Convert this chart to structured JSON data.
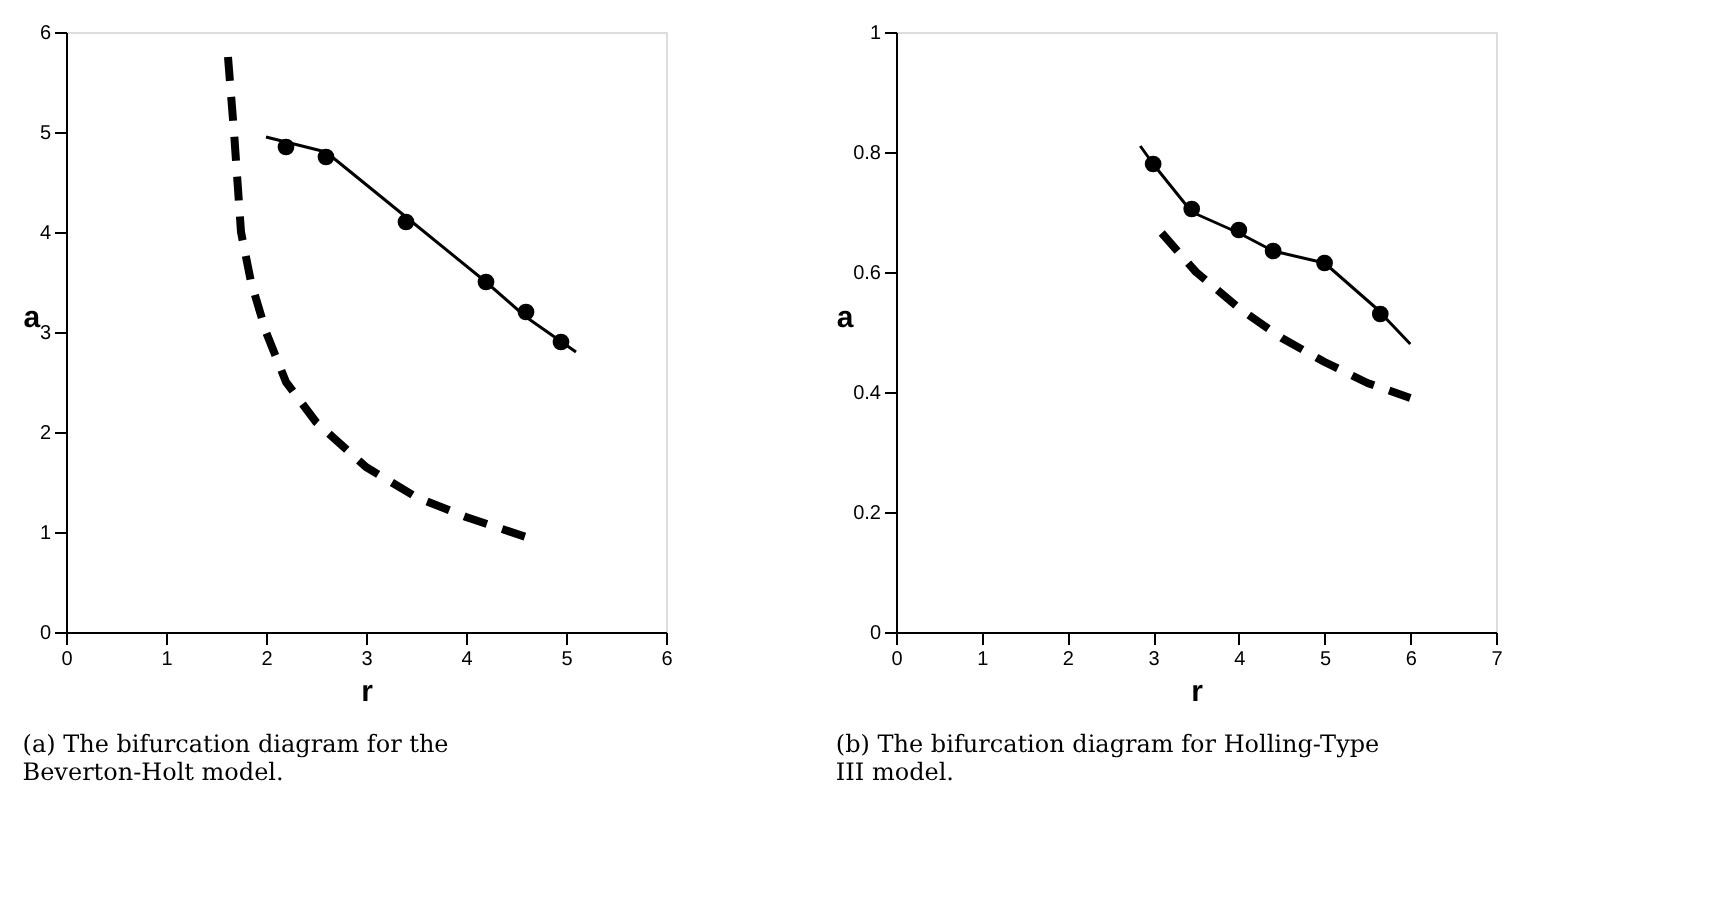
{
  "chart_data": [
    {
      "type": "line",
      "xlabel": "r",
      "ylabel": "a",
      "xlim": [
        0,
        6
      ],
      "ylim": [
        0,
        6
      ],
      "xticks": [
        0,
        1,
        2,
        3,
        4,
        5,
        6
      ],
      "yticks": [
        0,
        1,
        2,
        3,
        4,
        5,
        6
      ],
      "grid": false,
      "annotations": [
        "(a) The bifurcation diagram for the Beverton-Holt model."
      ],
      "series": [
        {
          "color": "#000000",
          "line_style": "solid",
          "x": [
            2.0,
            2.6,
            3.4,
            4.2,
            4.6,
            5.1
          ],
          "values": [
            4.95,
            4.8,
            4.15,
            3.5,
            3.15,
            2.8
          ]
        },
        {
          "type": "scatter",
          "color": "#000000",
          "marker": "circle",
          "x": [
            2.2,
            2.6,
            3.4,
            4.2,
            4.6,
            4.95
          ],
          "values": [
            4.85,
            4.75,
            4.1,
            3.5,
            3.2,
            2.9
          ]
        },
        {
          "color": "#000000",
          "line_style": "dashed",
          "x": [
            1.62,
            1.68,
            1.75,
            1.85,
            2.0,
            2.2,
            2.5,
            3.0,
            3.5,
            4.0,
            4.6
          ],
          "values": [
            5.75,
            5.0,
            4.0,
            3.5,
            3.0,
            2.5,
            2.1,
            1.65,
            1.35,
            1.15,
            0.95
          ]
        }
      ]
    },
    {
      "type": "line",
      "xlabel": "r",
      "ylabel": "a",
      "xlim": [
        0,
        7
      ],
      "ylim": [
        0,
        1
      ],
      "xticks": [
        0,
        1,
        2,
        3,
        4,
        5,
        6,
        7
      ],
      "yticks": [
        0,
        0.2,
        0.4,
        0.6,
        0.8,
        1
      ],
      "grid": false,
      "annotations": [
        "(b) The bifurcation diagram for Holling-Type III model."
      ],
      "series": [
        {
          "color": "#000000",
          "line_style": "solid",
          "x": [
            2.85,
            3.0,
            3.45,
            4.0,
            4.4,
            5.0,
            5.6,
            6.0
          ],
          "values": [
            0.81,
            0.78,
            0.7,
            0.665,
            0.635,
            0.615,
            0.54,
            0.48
          ]
        },
        {
          "type": "scatter",
          "color": "#000000",
          "marker": "circle",
          "x": [
            3.0,
            3.45,
            4.0,
            4.4,
            5.0,
            5.65
          ],
          "values": [
            0.78,
            0.705,
            0.67,
            0.635,
            0.615,
            0.53
          ]
        },
        {
          "color": "#000000",
          "line_style": "dashed",
          "x": [
            3.1,
            3.5,
            4.0,
            4.5,
            5.0,
            5.5,
            6.0
          ],
          "values": [
            0.665,
            0.6,
            0.54,
            0.49,
            0.45,
            0.415,
            0.39
          ]
        }
      ]
    }
  ]
}
